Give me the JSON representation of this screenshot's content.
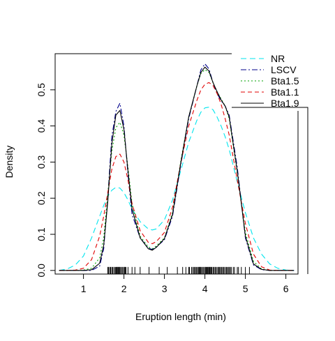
{
  "chart_data": {
    "type": "line",
    "title": "",
    "xlabel": "Eruption length (min)",
    "ylabel": "Density",
    "xlim": [
      0.3,
      6.3
    ],
    "ylim": [
      -0.01,
      0.6
    ],
    "x_ticks": [
      1,
      2,
      3,
      4,
      5,
      6
    ],
    "y_ticks": [
      0.0,
      0.1,
      0.2,
      0.3,
      0.4,
      0.5
    ],
    "grid": false,
    "legend_position": "top-right",
    "x": [
      0.4,
      0.6,
      0.8,
      1.0,
      1.2,
      1.4,
      1.5,
      1.6,
      1.7,
      1.8,
      1.9,
      2.0,
      2.1,
      2.2,
      2.4,
      2.6,
      2.7,
      2.8,
      3.0,
      3.2,
      3.4,
      3.6,
      3.8,
      3.9,
      4.0,
      4.1,
      4.2,
      4.3,
      4.4,
      4.5,
      4.6,
      4.8,
      5.0,
      5.2,
      5.4,
      5.6,
      5.8,
      6.0,
      6.2
    ],
    "series": [
      {
        "name": "NR",
        "color": "#00e5ee",
        "dash": "8 5",
        "values": [
          0.0,
          0.004,
          0.015,
          0.04,
          0.09,
          0.15,
          0.18,
          0.205,
          0.222,
          0.23,
          0.228,
          0.215,
          0.195,
          0.17,
          0.135,
          0.115,
          0.112,
          0.115,
          0.14,
          0.195,
          0.275,
          0.355,
          0.415,
          0.438,
          0.45,
          0.452,
          0.445,
          0.425,
          0.4,
          0.37,
          0.335,
          0.245,
          0.16,
          0.09,
          0.045,
          0.018,
          0.006,
          0.001,
          0.0
        ]
      },
      {
        "name": "LSCV",
        "color": "#00008b",
        "dash": "8 3 2 3",
        "values": [
          0.0,
          0.0,
          0.0,
          0.0,
          0.0,
          0.012,
          0.06,
          0.2,
          0.37,
          0.44,
          0.463,
          0.4,
          0.265,
          0.155,
          0.09,
          0.062,
          0.058,
          0.065,
          0.085,
          0.15,
          0.29,
          0.42,
          0.51,
          0.555,
          0.572,
          0.558,
          0.52,
          0.49,
          0.47,
          0.455,
          0.43,
          0.285,
          0.09,
          0.015,
          0.002,
          0.0,
          0.0,
          0.0,
          0.0
        ]
      },
      {
        "name": "Bta1.5",
        "color": "#00a000",
        "dash": "2 3",
        "values": [
          0.0,
          0.0,
          0.0,
          0.001,
          0.006,
          0.035,
          0.09,
          0.21,
          0.33,
          0.395,
          0.41,
          0.375,
          0.285,
          0.185,
          0.095,
          0.065,
          0.06,
          0.068,
          0.09,
          0.16,
          0.3,
          0.425,
          0.51,
          0.545,
          0.556,
          0.548,
          0.52,
          0.495,
          0.475,
          0.455,
          0.42,
          0.27,
          0.105,
          0.025,
          0.004,
          0.0,
          0.0,
          0.0,
          0.0
        ]
      },
      {
        "name": "Bta1.1",
        "color": "#e00000",
        "dash": "6 4",
        "values": [
          0.0,
          0.0,
          0.001,
          0.006,
          0.03,
          0.095,
          0.15,
          0.215,
          0.28,
          0.315,
          0.322,
          0.3,
          0.25,
          0.185,
          0.11,
          0.078,
          0.074,
          0.08,
          0.105,
          0.175,
          0.295,
          0.4,
          0.47,
          0.5,
          0.515,
          0.52,
          0.512,
          0.49,
          0.46,
          0.42,
          0.375,
          0.25,
          0.13,
          0.045,
          0.01,
          0.001,
          0.0,
          0.0,
          0.0
        ]
      },
      {
        "name": "Bta1.9",
        "color": "#000000",
        "dash": "",
        "values": [
          0.0,
          0.0,
          0.0,
          0.0,
          0.002,
          0.02,
          0.07,
          0.19,
          0.35,
          0.43,
          0.443,
          0.39,
          0.275,
          0.17,
          0.09,
          0.06,
          0.056,
          0.064,
          0.088,
          0.155,
          0.295,
          0.425,
          0.51,
          0.548,
          0.563,
          0.552,
          0.52,
          0.495,
          0.472,
          0.455,
          0.425,
          0.275,
          0.095,
          0.018,
          0.003,
          0.0,
          0.0,
          0.0,
          0.0
        ]
      }
    ],
    "rug": [
      1.6,
      1.62,
      1.65,
      1.67,
      1.7,
      1.72,
      1.75,
      1.78,
      1.8,
      1.82,
      1.83,
      1.85,
      1.87,
      1.88,
      1.9,
      1.92,
      1.95,
      1.97,
      2.0,
      2.02,
      2.03,
      2.05,
      2.1,
      2.2,
      2.27,
      2.4,
      2.62,
      2.87,
      3.07,
      3.32,
      3.45,
      3.53,
      3.6,
      3.62,
      3.67,
      3.7,
      3.73,
      3.75,
      3.78,
      3.8,
      3.83,
      3.85,
      3.87,
      3.88,
      3.9,
      3.92,
      3.95,
      3.97,
      4.0,
      4.02,
      4.03,
      4.05,
      4.07,
      4.08,
      4.1,
      4.12,
      4.13,
      4.15,
      4.17,
      4.2,
      4.22,
      4.25,
      4.27,
      4.3,
      4.33,
      4.35,
      4.37,
      4.4,
      4.42,
      4.45,
      4.47,
      4.5,
      4.53,
      4.55,
      4.58,
      4.6,
      4.63,
      4.65,
      4.7,
      4.73,
      4.8,
      4.83,
      4.9,
      5.0,
      5.1
    ]
  }
}
